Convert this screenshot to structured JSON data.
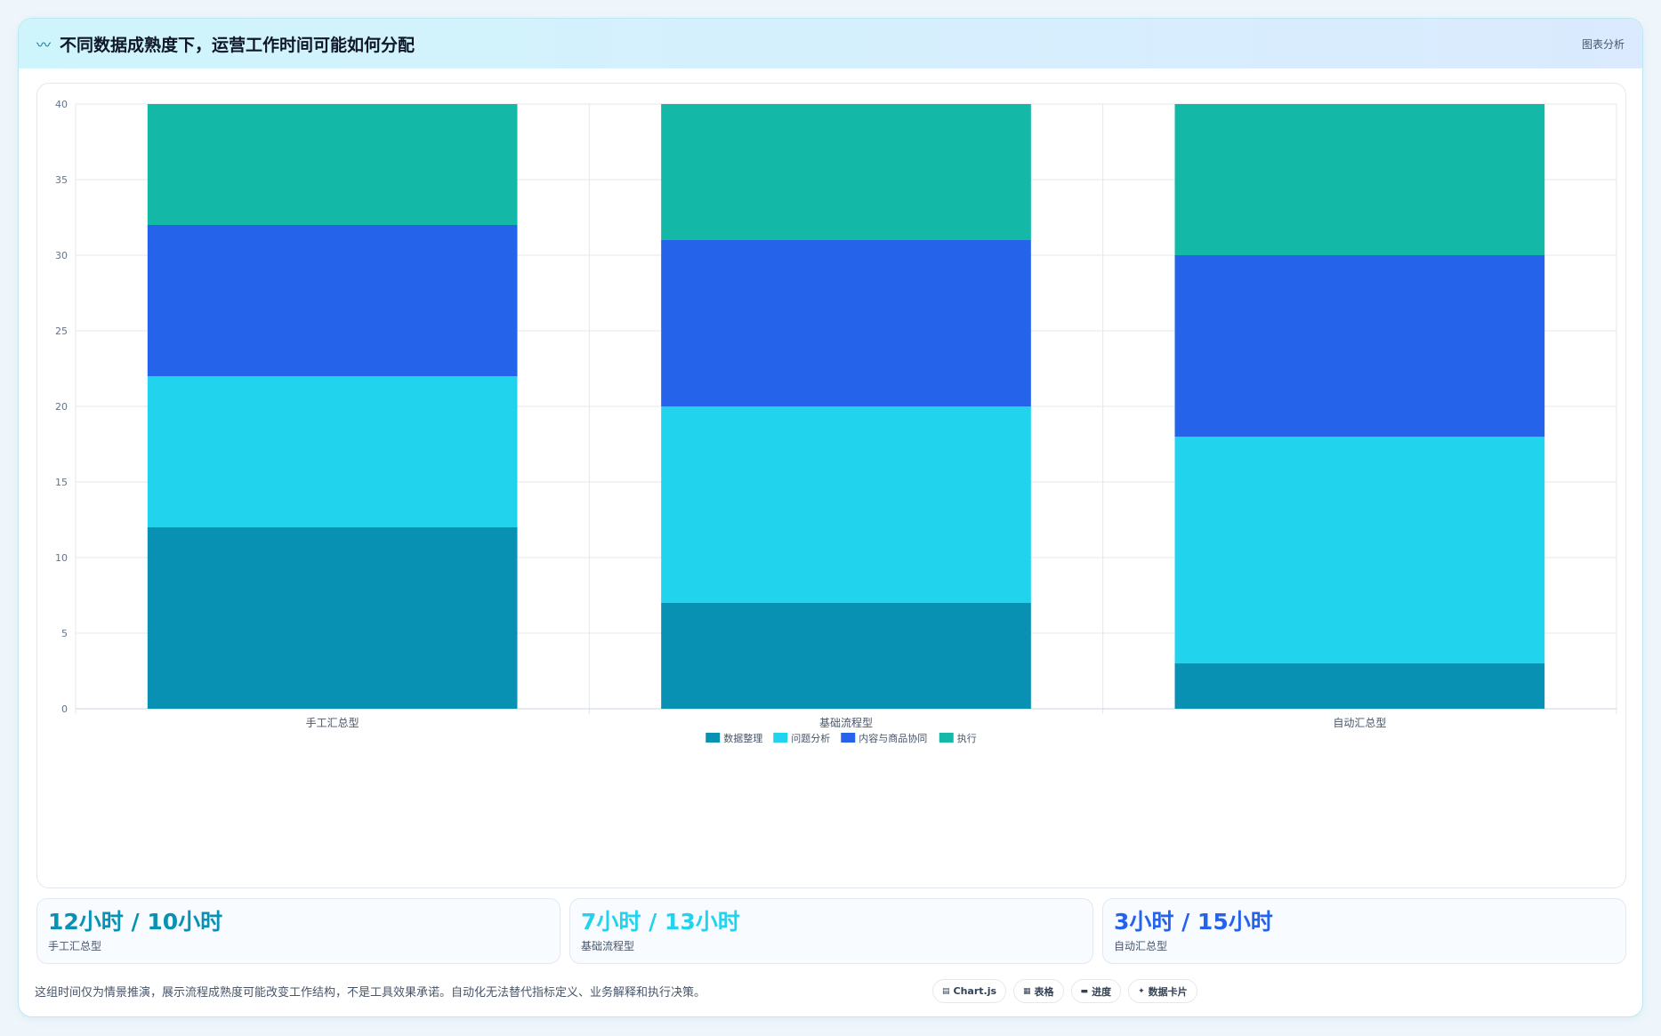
{
  "header": {
    "icon": "trend-line-icon",
    "title": "不同数据成熟度下，运营工作时间可能如何分配",
    "badge": "图表分析"
  },
  "chart_data": {
    "type": "bar",
    "stacked": true,
    "categories": [
      "手工汇总型",
      "基础流程型",
      "自动汇总型"
    ],
    "series": [
      {
        "name": "数据整理",
        "color": "#0891b2",
        "values": [
          12,
          7,
          3
        ]
      },
      {
        "name": "问题分析",
        "color": "#22d3ee",
        "values": [
          10,
          13,
          15
        ]
      },
      {
        "name": "内容与商品协同",
        "color": "#2563eb",
        "values": [
          10,
          11,
          12
        ]
      },
      {
        "name": "执行",
        "color": "#14b8a6",
        "values": [
          8,
          9,
          10
        ]
      }
    ],
    "ylim": [
      0,
      40
    ],
    "yticks": [
      0,
      5,
      10,
      15,
      20,
      25,
      30,
      35,
      40
    ],
    "grid": true,
    "legend": "bottom"
  },
  "stats": [
    {
      "value": "12小时 / 10小时",
      "label": "手工汇总型",
      "color": "#0891b2"
    },
    {
      "value": "7小时 / 13小时",
      "label": "基础流程型",
      "color": "#22d3ee"
    },
    {
      "value": "3小时 / 15小时",
      "label": "自动汇总型",
      "color": "#2563eb"
    }
  ],
  "footer": {
    "note": "这组时间仅为情景推演，展示流程成熟度可能改变工作结构，不是工具效果承诺。自动化无法替代指标定义、业务解释和执行决策。",
    "chips": [
      {
        "icon": "▤",
        "label": "Chart.js"
      },
      {
        "icon": "▦",
        "label": "表格"
      },
      {
        "icon": "▬",
        "label": "进度"
      },
      {
        "icon": "✦",
        "label": "数据卡片"
      }
    ]
  }
}
